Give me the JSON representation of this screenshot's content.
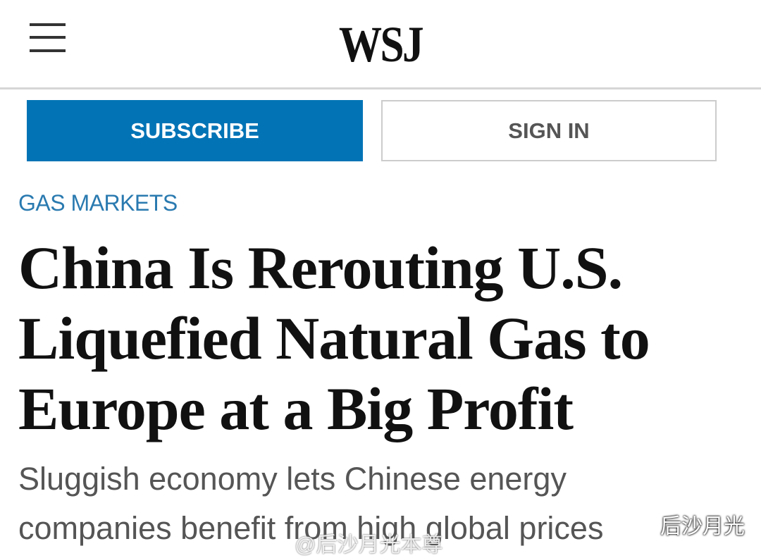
{
  "header": {
    "logo": "WSJ"
  },
  "buttons": {
    "subscribe": "SUBSCRIBE",
    "sign_in": "SIGN IN"
  },
  "article": {
    "category": "GAS MARKETS",
    "headline_lines": [
      "China Is Rerouting U.S.",
      "Liquefied Natural Gas to",
      "Europe at a Big Profit"
    ],
    "subtitle_lines": [
      "Sluggish economy lets Chinese energy",
      "companies benefit from high global prices"
    ]
  },
  "watermarks": {
    "wechat": "后沙月光",
    "weibo": "@后沙月光本尊"
  }
}
